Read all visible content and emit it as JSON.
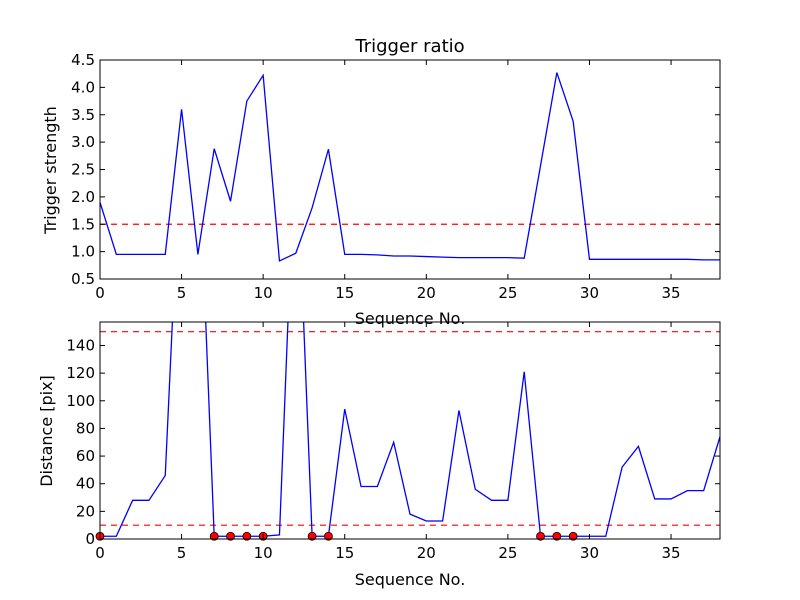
{
  "chart_data": [
    {
      "type": "line",
      "title": "Trigger ratio",
      "xlabel": "Sequence No.",
      "ylabel": "Trigger strength",
      "xlim": [
        0,
        38
      ],
      "ylim": [
        0.5,
        4.5
      ],
      "xticks": [
        0,
        5,
        10,
        15,
        20,
        25,
        30,
        35
      ],
      "yticks": [
        0.5,
        1.0,
        1.5,
        2.0,
        2.5,
        3.0,
        3.5,
        4.0,
        4.5
      ],
      "xtick_labels": [
        "0",
        "5",
        "10",
        "15",
        "20",
        "25",
        "30",
        "35"
      ],
      "ytick_labels": [
        "0.5",
        "1.0",
        "1.5",
        "2.0",
        "2.5",
        "3.0",
        "3.5",
        "4.0",
        "4.5"
      ],
      "grid": false,
      "series": [
        {
          "color": "#0000ff",
          "x": [
            0,
            1,
            2,
            3,
            4,
            5,
            6,
            7,
            8,
            9,
            10,
            11,
            12,
            13,
            14,
            15,
            16,
            17,
            18,
            19,
            20,
            21,
            22,
            23,
            24,
            25,
            26,
            27,
            28,
            29,
            30,
            31,
            32,
            33,
            34,
            35,
            36,
            37,
            38
          ],
          "y": [
            1.9,
            0.95,
            0.95,
            0.95,
            0.95,
            3.6,
            0.95,
            2.88,
            1.92,
            3.75,
            4.22,
            0.83,
            0.97,
            1.8,
            2.87,
            0.95,
            0.95,
            0.94,
            0.92,
            0.92,
            0.91,
            0.9,
            0.89,
            0.89,
            0.89,
            0.89,
            0.88,
            2.57,
            4.27,
            3.38,
            0.86,
            0.86,
            0.86,
            0.86,
            0.86,
            0.86,
            0.86,
            0.85,
            0.85
          ]
        }
      ],
      "reference_lines": [
        {
          "y": 1.5,
          "color": "#ff0000",
          "style": "dashed"
        }
      ]
    },
    {
      "type": "line",
      "title": "",
      "xlabel": "Sequence No.",
      "ylabel": "Distance [pix]",
      "xlim": [
        0,
        38
      ],
      "ylim": [
        0,
        157
      ],
      "xticks": [
        0,
        5,
        10,
        15,
        20,
        25,
        30,
        35
      ],
      "yticks": [
        0,
        20,
        40,
        60,
        80,
        100,
        120,
        140
      ],
      "xtick_labels": [
        "0",
        "5",
        "10",
        "15",
        "20",
        "25",
        "30",
        "35"
      ],
      "ytick_labels": [
        "0",
        "20",
        "40",
        "60",
        "80",
        "100",
        "120",
        "140"
      ],
      "grid": false,
      "series": [
        {
          "color": "#0000ff",
          "x": [
            0,
            1,
            2,
            3,
            4,
            5,
            6,
            7,
            8,
            9,
            10,
            11,
            12,
            13,
            14,
            15,
            16,
            17,
            18,
            19,
            20,
            21,
            22,
            23,
            24,
            25,
            26,
            27,
            28,
            29,
            30,
            31,
            32,
            33,
            34,
            35,
            36,
            37,
            38
          ],
          "y": [
            2,
            2,
            28,
            28,
            46,
            300,
            300,
            2,
            2,
            2,
            2,
            3,
            300,
            2,
            2,
            94,
            38,
            38,
            70,
            18,
            13,
            13,
            93,
            36,
            28,
            28,
            121,
            2,
            2,
            2,
            2,
            2,
            52,
            67,
            29,
            29,
            35,
            35,
            74
          ]
        }
      ],
      "markers": {
        "color": "#ff0000",
        "x": [
          0,
          7,
          8,
          9,
          10,
          13,
          14,
          27,
          28,
          29
        ],
        "y": [
          2,
          2,
          2,
          2,
          2,
          2,
          2,
          2,
          2,
          2
        ]
      },
      "reference_lines": [
        {
          "y": 150,
          "color": "#ff0000",
          "style": "dashed"
        },
        {
          "y": 10,
          "color": "#ff0000",
          "style": "dashed"
        }
      ]
    }
  ]
}
